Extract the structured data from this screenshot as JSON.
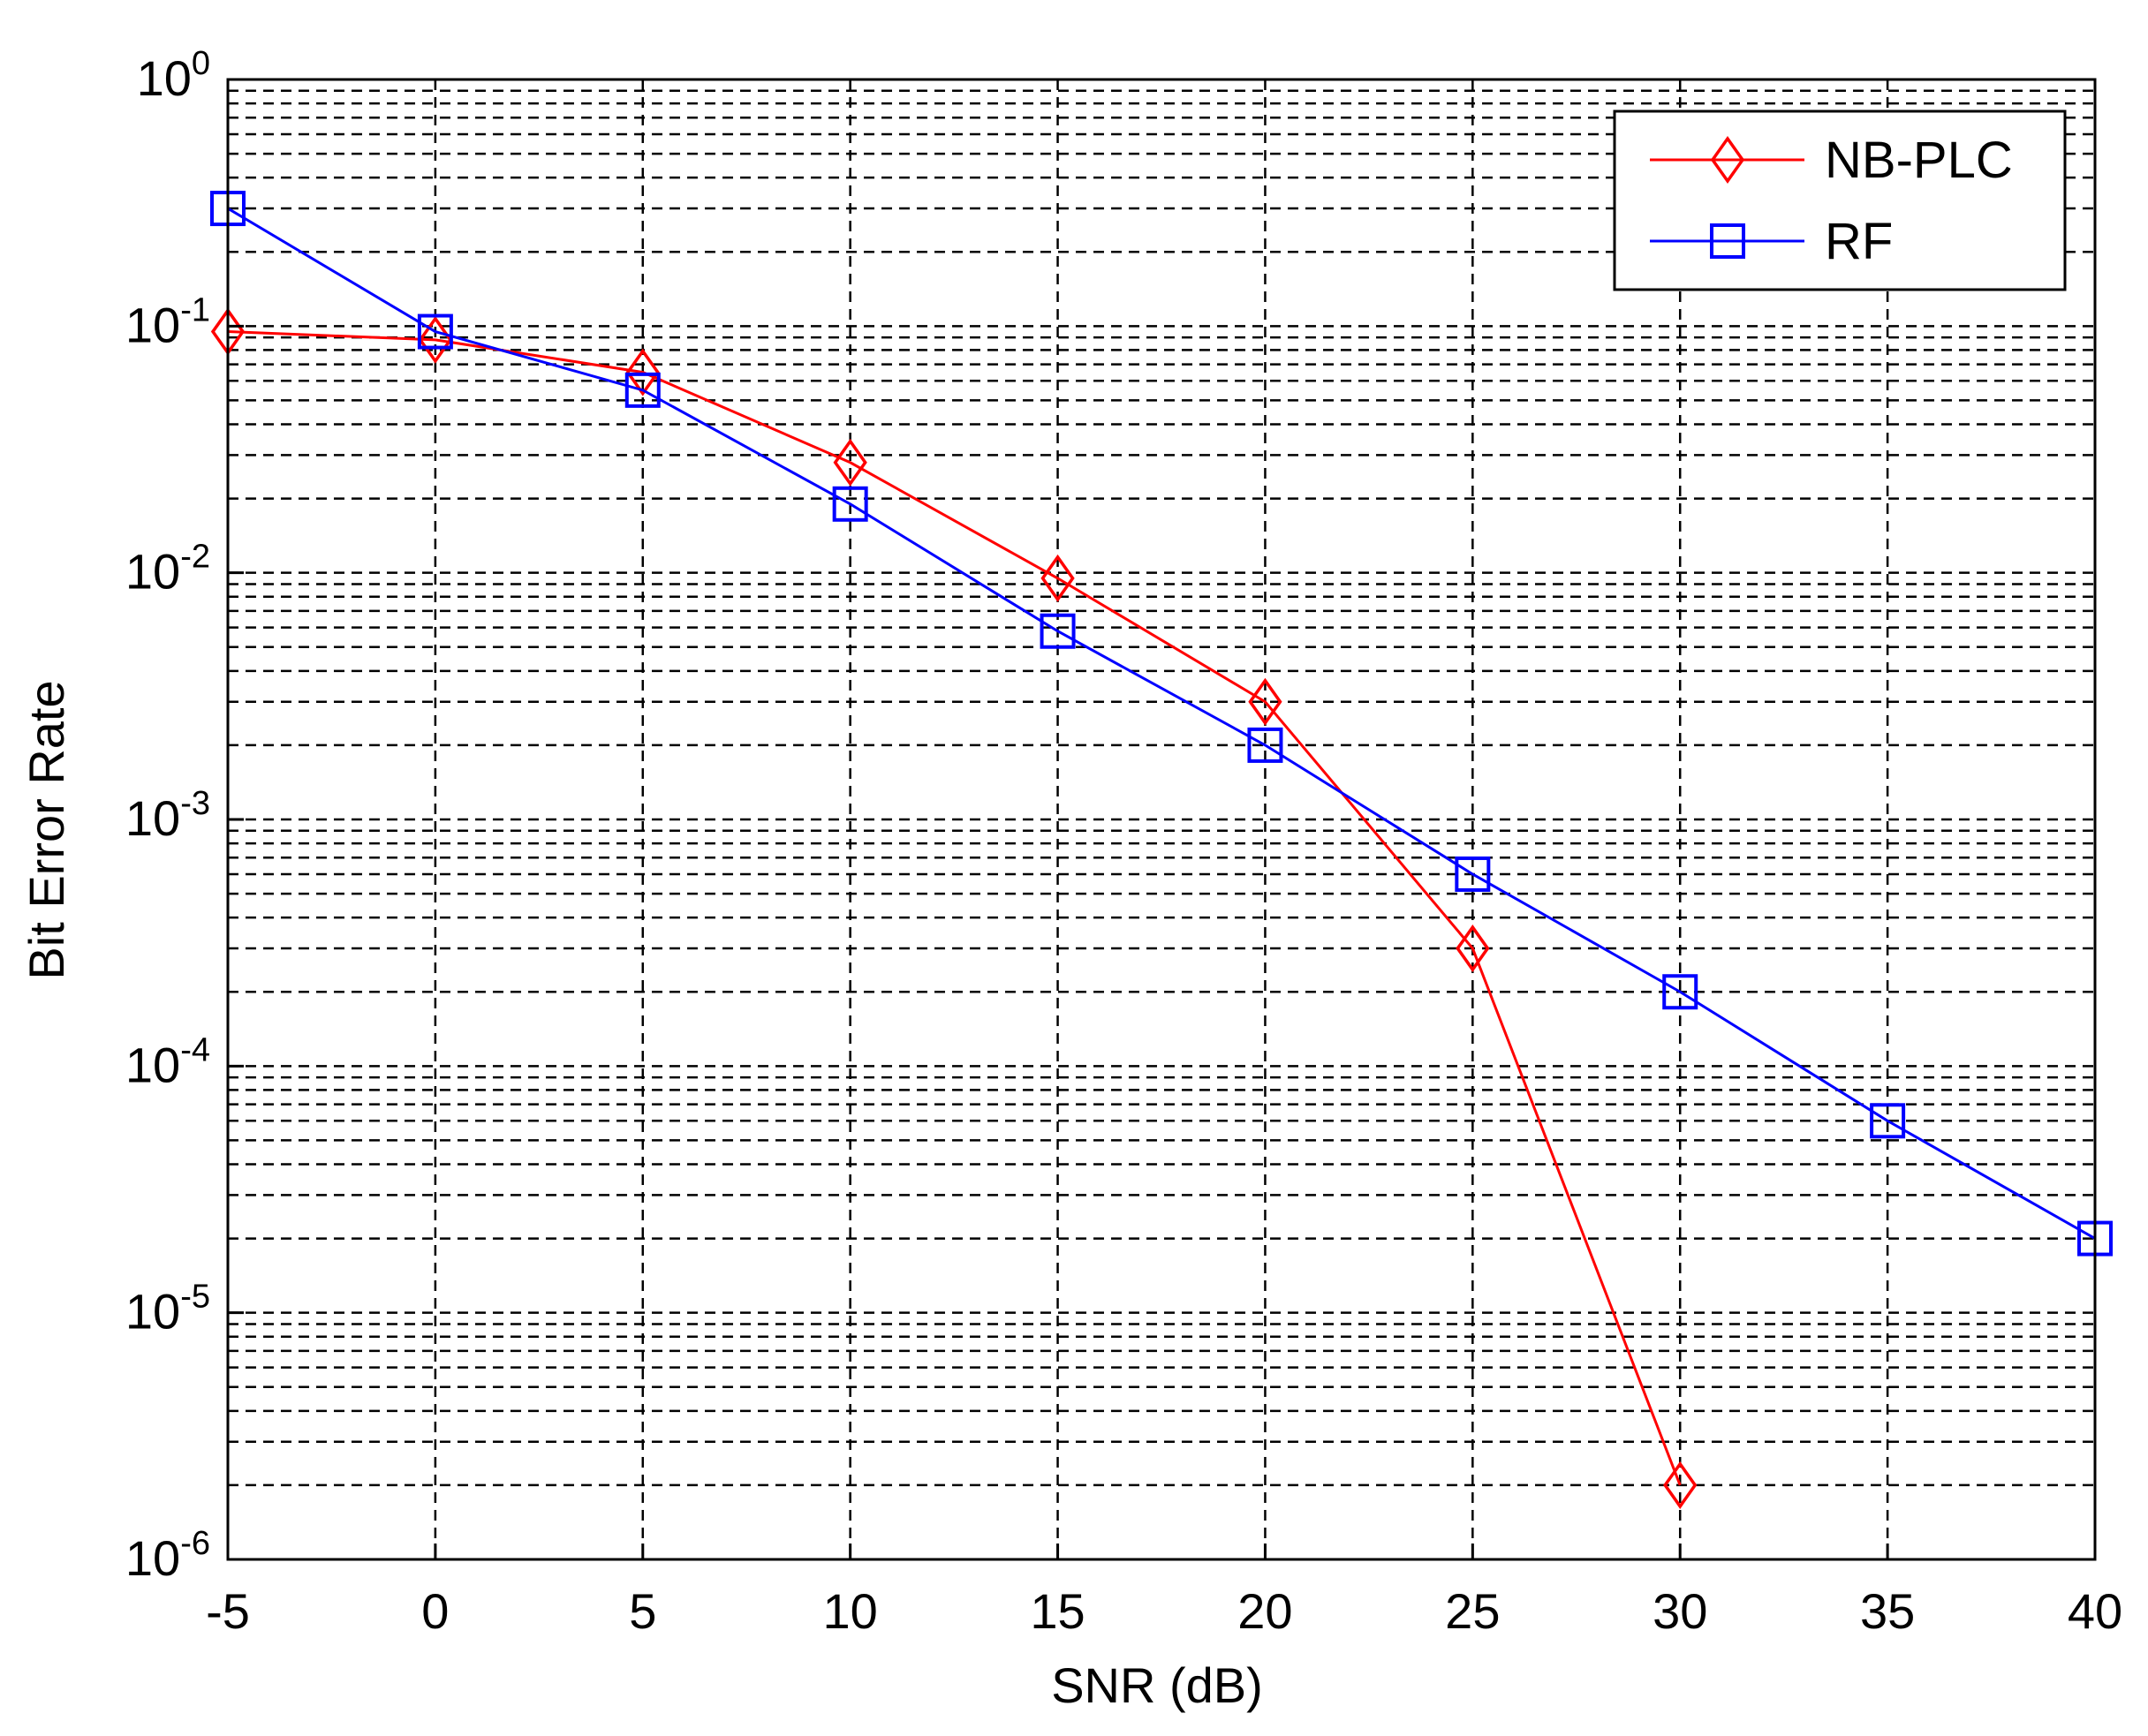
{
  "chart_data": {
    "type": "line",
    "title": "",
    "xlabel": "SNR (dB)",
    "ylabel": "Bit Error Rate",
    "xlim": [
      -5,
      40
    ],
    "ylim": [
      1e-06,
      1
    ],
    "yscale": "log",
    "grid": true,
    "legend_position": "top-right",
    "x_ticks": [
      "-5",
      "0",
      "5",
      "10",
      "15",
      "20",
      "25",
      "30",
      "35",
      "40"
    ],
    "y_ticks": [
      {
        "base": "10",
        "exp": "0"
      },
      {
        "base": "10",
        "exp": "-1"
      },
      {
        "base": "10",
        "exp": "-2"
      },
      {
        "base": "10",
        "exp": "-3"
      },
      {
        "base": "10",
        "exp": "-4"
      },
      {
        "base": "10",
        "exp": "-5"
      },
      {
        "base": "10",
        "exp": "-6"
      }
    ],
    "series": [
      {
        "name": "NB-PLC",
        "color": "#ff0000",
        "marker": "diamond",
        "x": [
          -5,
          0,
          5,
          10,
          15,
          20,
          25,
          30
        ],
        "y": [
          0.095,
          0.088,
          0.065,
          0.028,
          0.0095,
          0.003,
          0.0003,
          2e-06
        ]
      },
      {
        "name": "RF",
        "color": "#0000ff",
        "marker": "square",
        "x": [
          -5,
          0,
          5,
          10,
          15,
          20,
          25,
          30,
          35,
          40
        ],
        "y": [
          0.3,
          0.095,
          0.055,
          0.019,
          0.0058,
          0.002,
          0.0006,
          0.0002,
          6e-05,
          2e-05
        ]
      }
    ]
  }
}
